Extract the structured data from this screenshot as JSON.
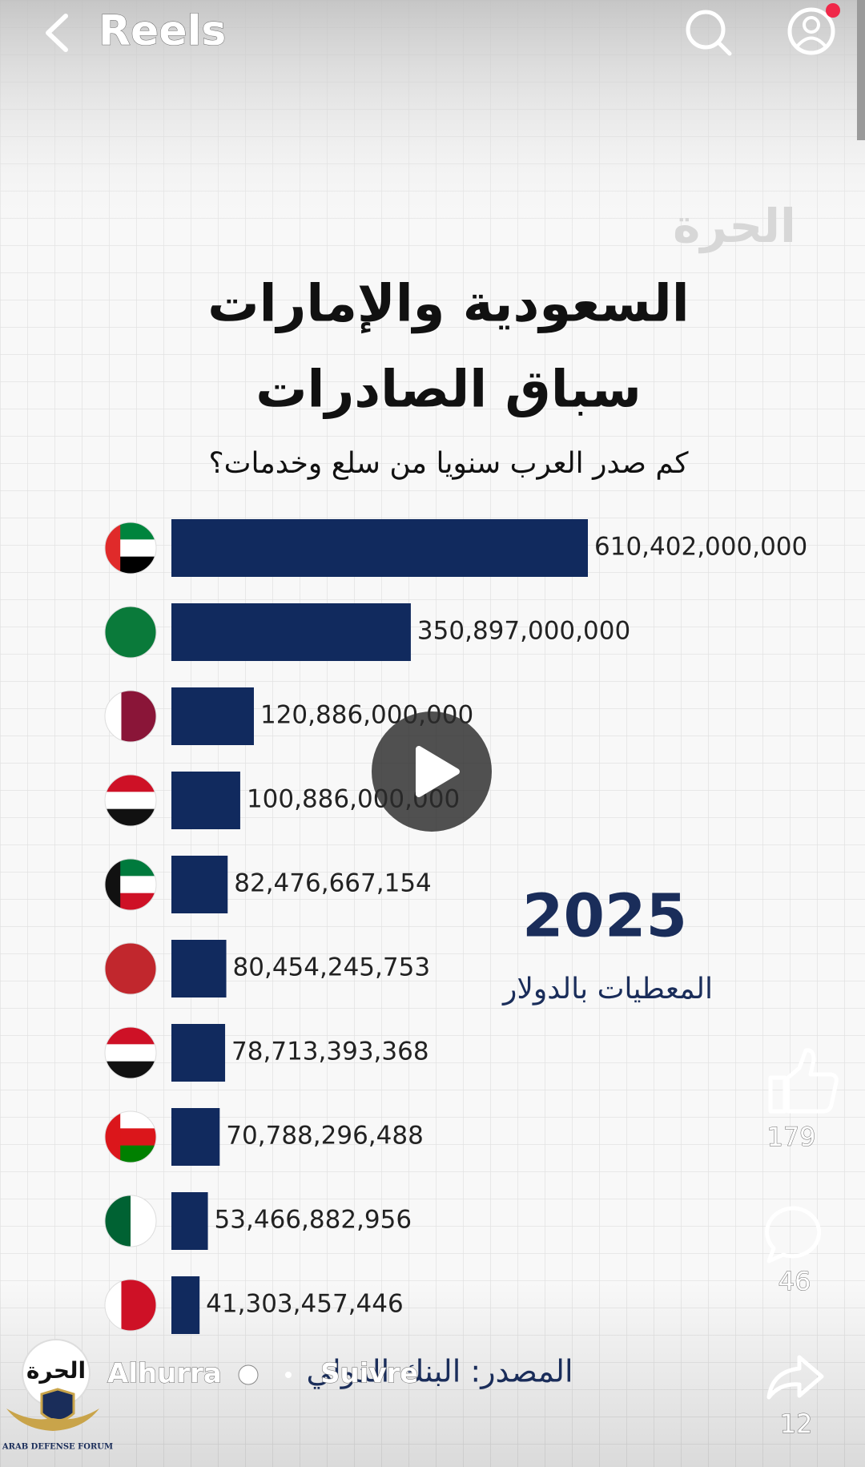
{
  "header": {
    "title": "Reels"
  },
  "chart_data": {
    "type": "bar",
    "orientation": "horizontal",
    "watermark": "الحرة",
    "title": [
      "السعودية والإمارات",
      "سباق الصادرات"
    ],
    "subtitle": "كم صدر العرب سنويا من سلع وخدمات؟",
    "categories": [
      null,
      null,
      null,
      null,
      null,
      null,
      null,
      null,
      null,
      null
    ],
    "values": [
      610402000000,
      350897000000,
      120886000000,
      100886000000,
      82476667154,
      80454245753,
      78713393368,
      70788296488,
      53466882956,
      41303457446
    ],
    "value_labels": [
      "610,402,000,000",
      "350,897,000,000",
      "120,886,000,000",
      "100,886,000,000",
      "82,476,667,154",
      "80,454,245,753",
      "78,713,393,368",
      "70,788,296,488",
      "53,466,882,956",
      "41,303,457,446"
    ],
    "color": "#112a5e",
    "year": "2025",
    "unit_note": "المعطيات بالدولار",
    "source": "المصدر: البنك الدولي"
  },
  "author": {
    "name": "Alhurra",
    "follow": "Suivre",
    "avatar_text": "الحرة"
  },
  "actions": {
    "likes": 179,
    "comments": 46,
    "shares": 12
  },
  "overlay_logo": {
    "name": "ARAB DEFENSE FORUM"
  }
}
